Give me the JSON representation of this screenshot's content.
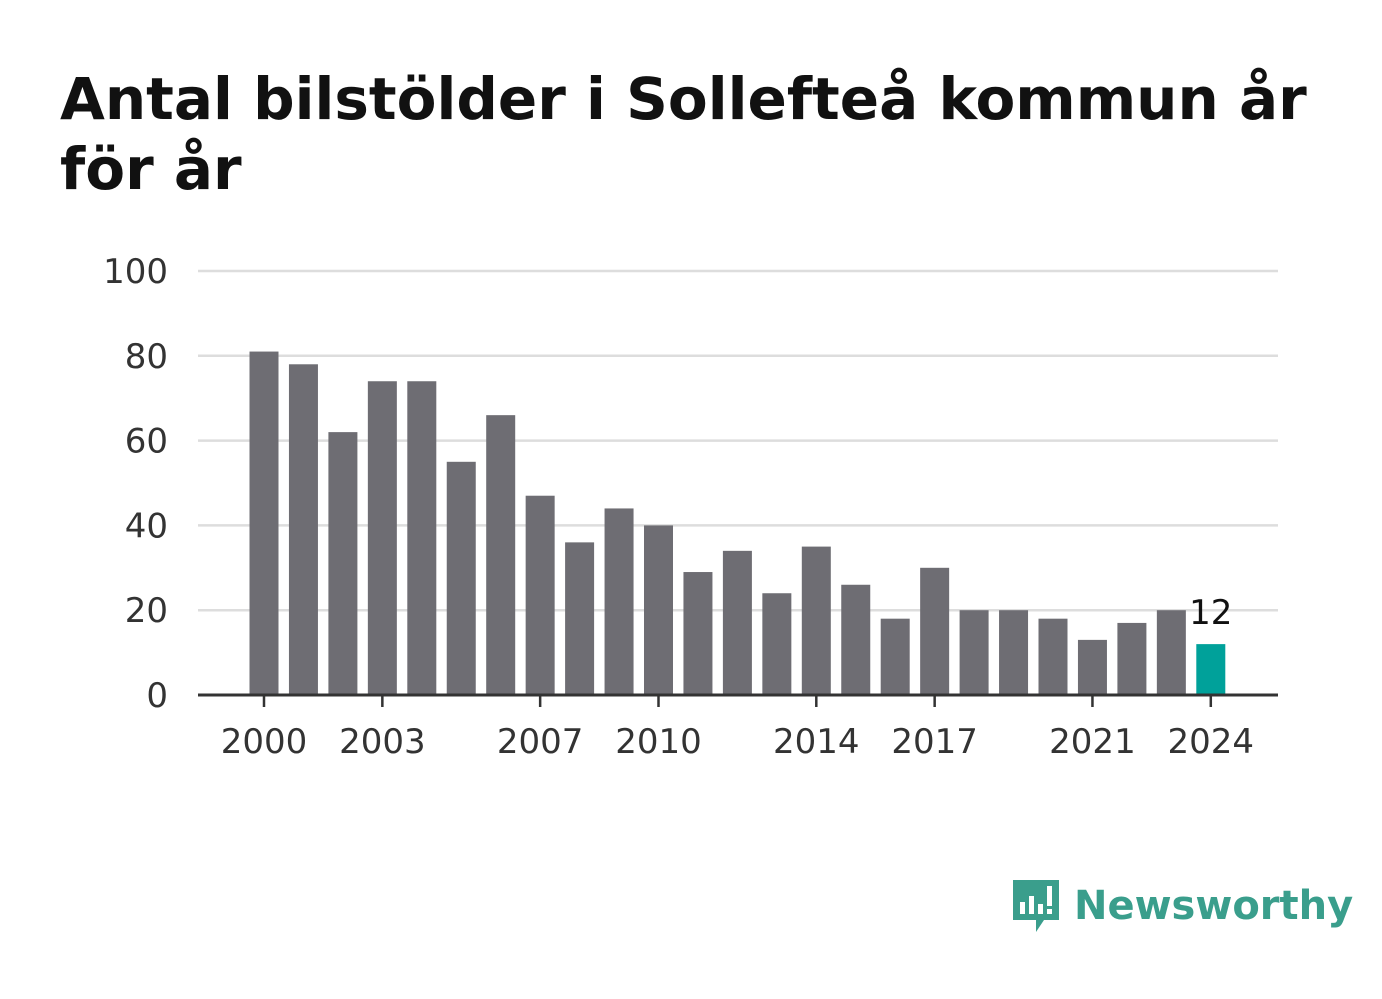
{
  "chart_data": {
    "type": "bar",
    "title": "Antal bilstölder i Sollefteå kommun år för år",
    "xlabel": "",
    "ylabel": "",
    "categories": [
      "2000",
      "2001",
      "2002",
      "2003",
      "2004",
      "2005",
      "2006",
      "2007",
      "2008",
      "2009",
      "2010",
      "2011",
      "2012",
      "2013",
      "2014",
      "2015",
      "2016",
      "2017",
      "2018",
      "2019",
      "2020",
      "2021",
      "2022",
      "2023",
      "2024"
    ],
    "values": [
      81,
      78,
      62,
      74,
      74,
      55,
      66,
      47,
      36,
      44,
      40,
      29,
      34,
      24,
      35,
      26,
      18,
      30,
      20,
      20,
      18,
      13,
      17,
      20,
      12
    ],
    "x_tick_labels": [
      "2000",
      "2003",
      "2007",
      "2010",
      "2014",
      "2017",
      "2021",
      "2024"
    ],
    "y_ticks": [
      0,
      20,
      40,
      60,
      80,
      100
    ],
    "ylim": [
      0,
      100
    ],
    "grid": true,
    "highlight": {
      "category": "2024",
      "label": "12"
    },
    "colors": {
      "bar": "#6e6d73",
      "highlight": "#00a19a",
      "grid": "#dddddd",
      "axis": "#333333"
    }
  },
  "brand": {
    "name": "Newsworthy",
    "color": "#3a9e8c",
    "icon": "newsworthy-logo-icon"
  }
}
